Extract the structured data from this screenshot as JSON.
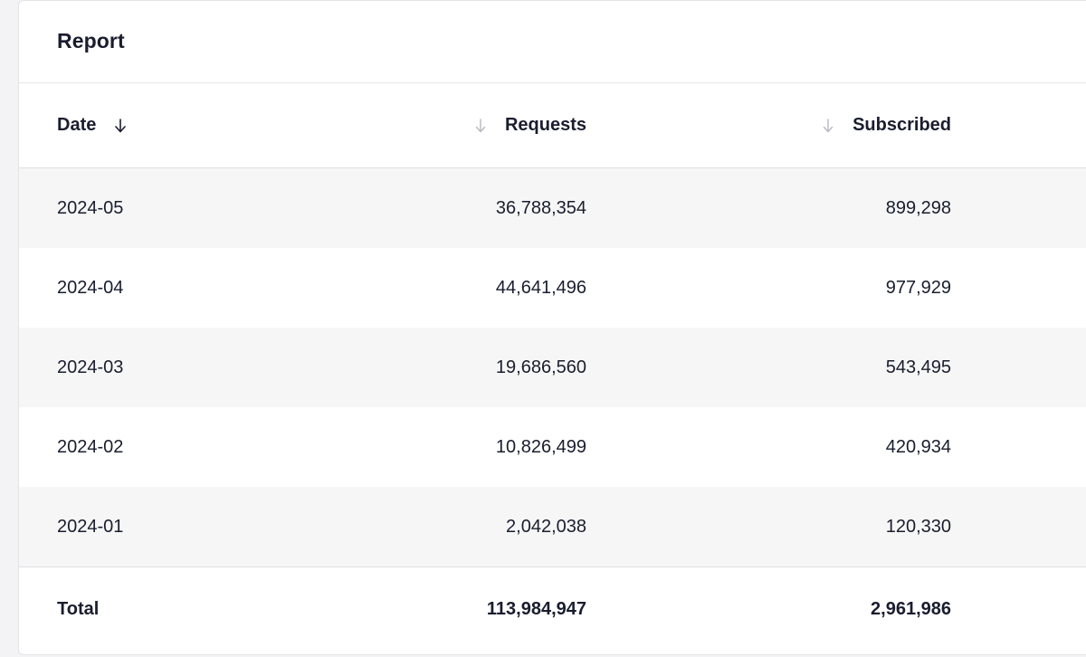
{
  "report": {
    "title": "Report"
  },
  "table": {
    "columns": {
      "date": "Date",
      "requests": "Requests",
      "subscribed": "Subscribed"
    },
    "rows": [
      {
        "date": "2024-05",
        "requests": "36,788,354",
        "subscribed": "899,298"
      },
      {
        "date": "2024-04",
        "requests": "44,641,496",
        "subscribed": "977,929"
      },
      {
        "date": "2024-03",
        "requests": "19,686,560",
        "subscribed": "543,495"
      },
      {
        "date": "2024-02",
        "requests": "10,826,499",
        "subscribed": "420,934"
      },
      {
        "date": "2024-01",
        "requests": "2,042,038",
        "subscribed": "120,330"
      }
    ],
    "total": {
      "label": "Total",
      "requests": "113,984,947",
      "subscribed": "2,961,986"
    }
  },
  "icons": {
    "sort_active": "arrow-down-icon",
    "sort_inactive": "arrow-down-icon"
  },
  "colors": {
    "text": "#1a1d2e",
    "stripe": "#f6f6f6",
    "active_arrow": "#1a1d2e",
    "inactive_arrow": "#b8b9c0"
  }
}
